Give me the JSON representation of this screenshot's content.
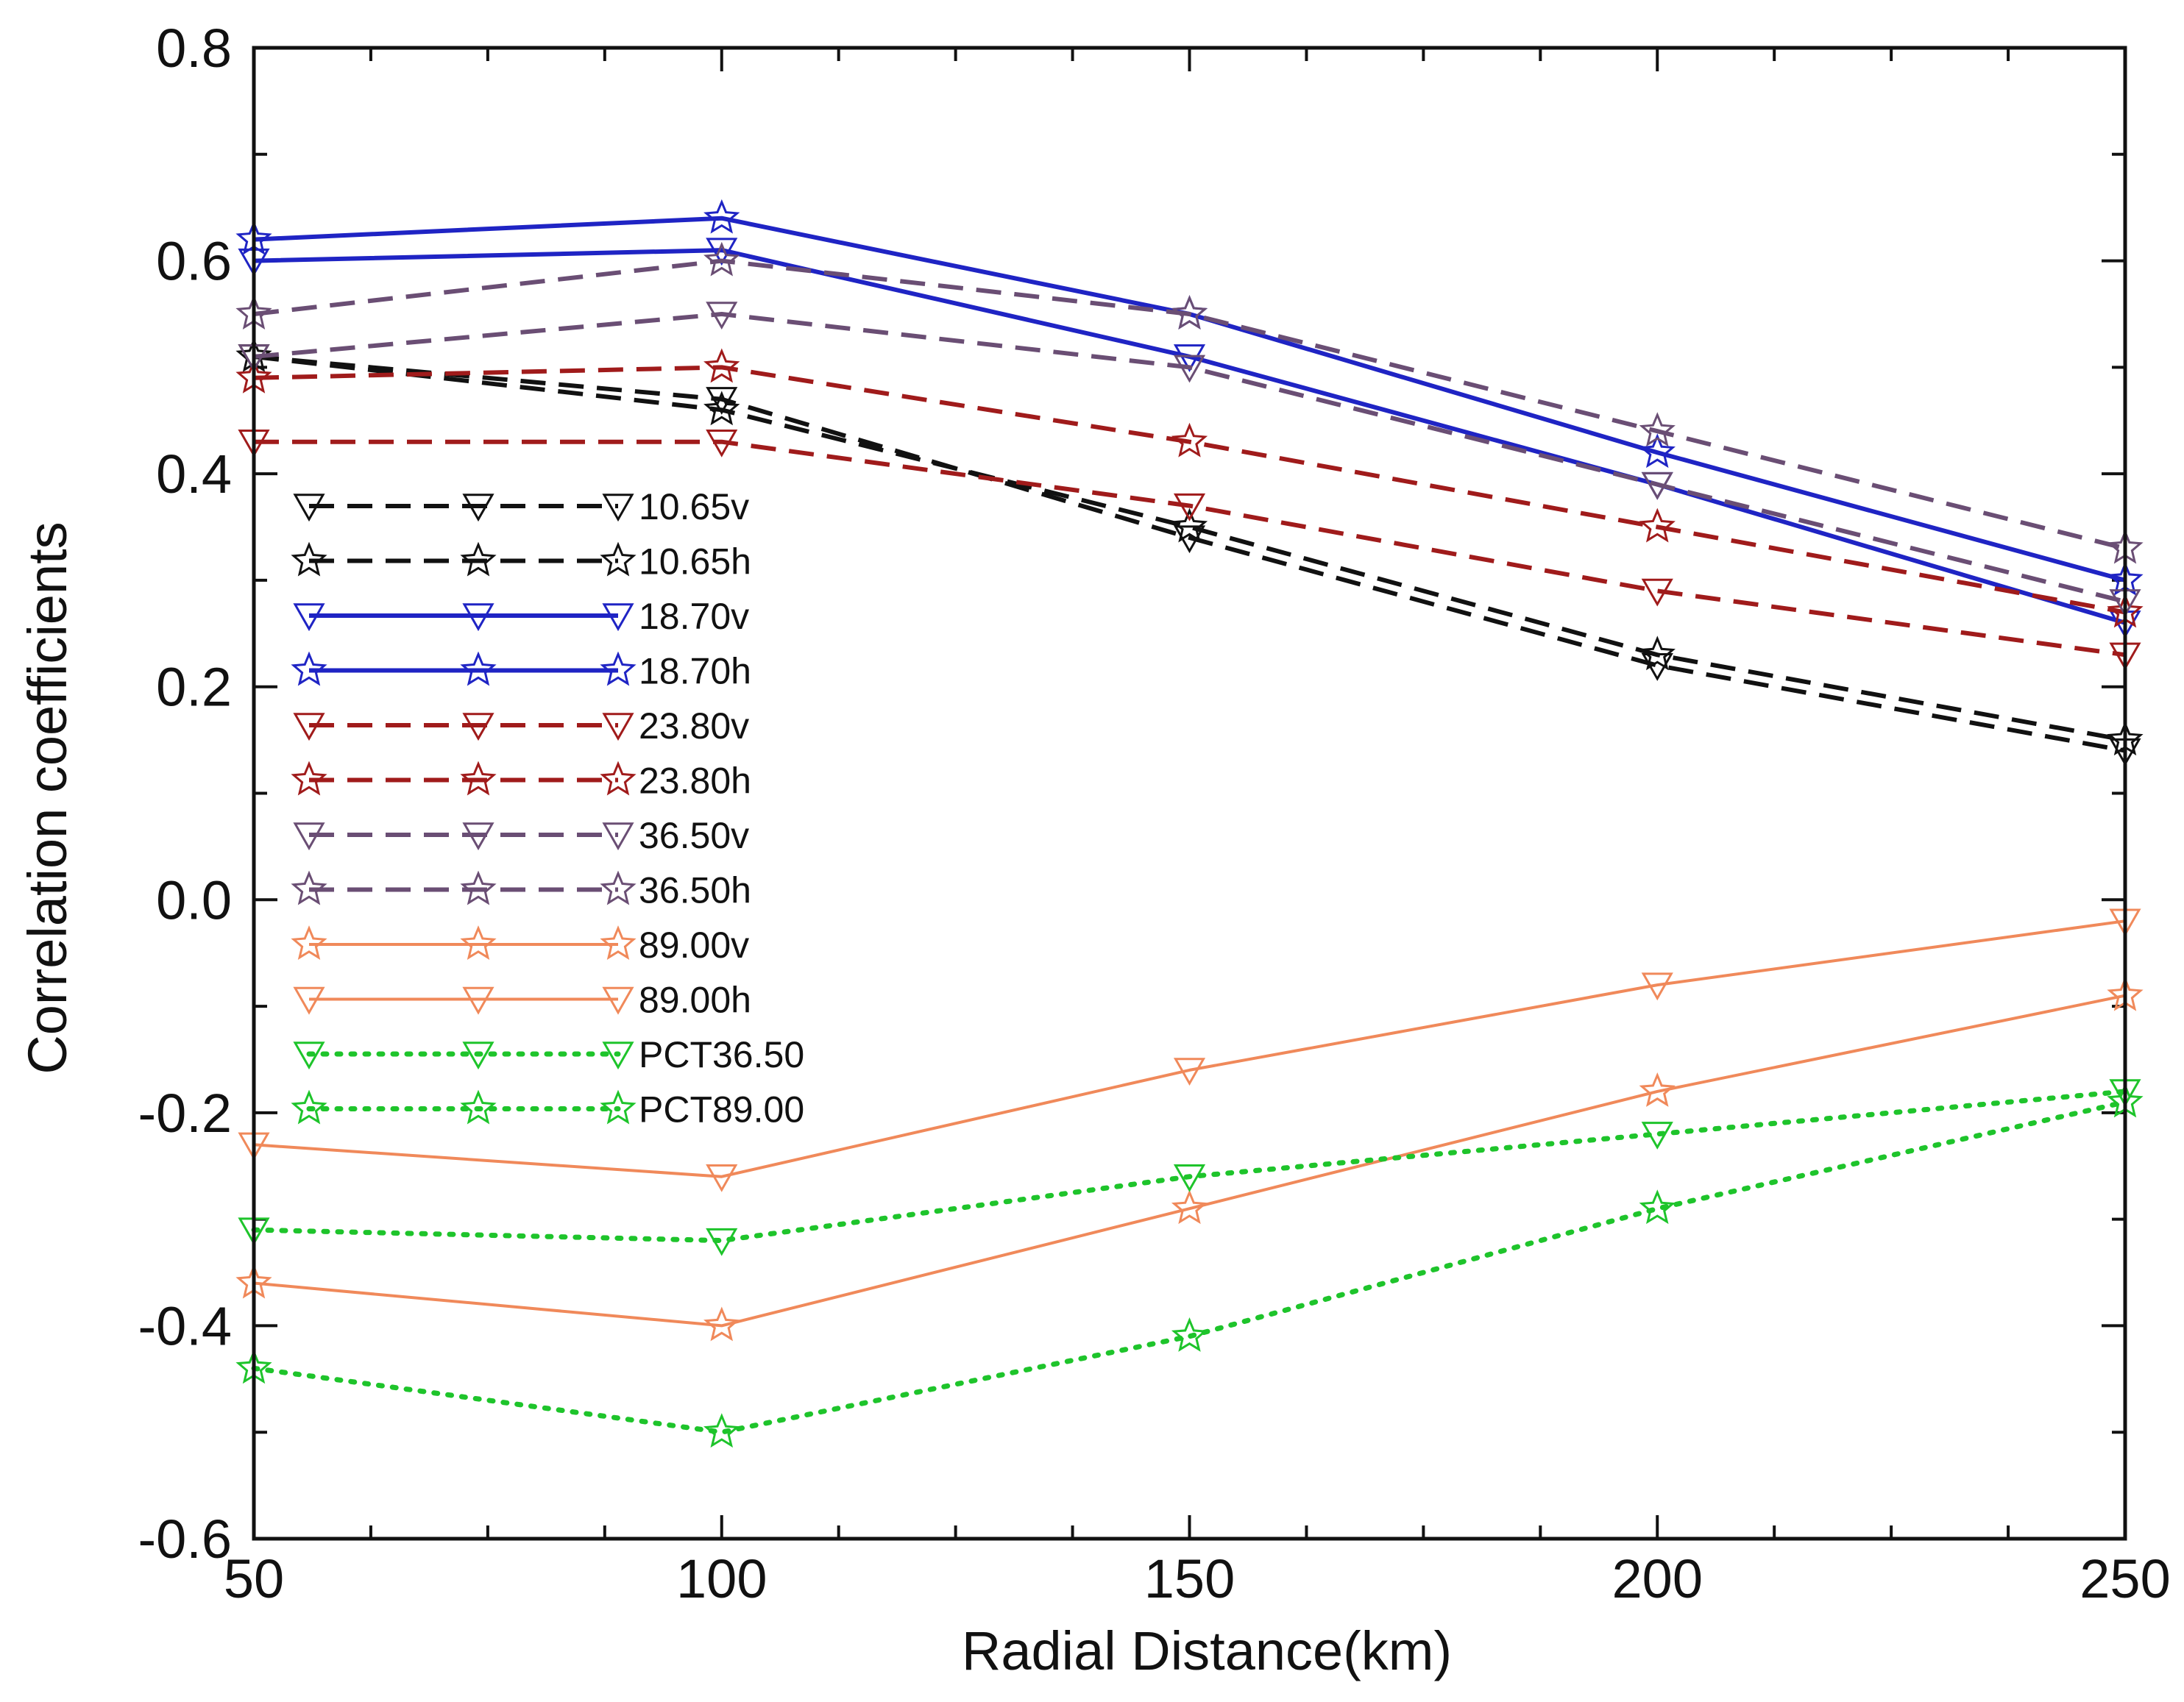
{
  "chart_data": {
    "type": "line",
    "title": "",
    "xlabel": "Radial Distance(km)",
    "ylabel": "Correlation coefficients",
    "xlim": [
      50,
      250
    ],
    "ylim": [
      -0.6,
      0.8
    ],
    "x_ticks": [
      "50",
      "100",
      "150",
      "200",
      "250"
    ],
    "x_tick_values": [
      50,
      100,
      150,
      200,
      250
    ],
    "y_ticks": [
      "-0.6",
      "-0.4",
      "-0.2",
      "0.0",
      "0.2",
      "0.4",
      "0.6",
      "0.8"
    ],
    "y_tick_values": [
      -0.6,
      -0.4,
      -0.2,
      0.0,
      0.2,
      0.4,
      0.6,
      0.8
    ],
    "x": [
      50,
      100,
      150,
      200,
      250
    ],
    "legend_position": "upper-left inside plot",
    "series": [
      {
        "name": "10.65v",
        "values": [
          0.51,
          0.47,
          0.34,
          0.22,
          0.14
        ],
        "color": "#111111",
        "dash": "dashed",
        "marker": "triangle-down"
      },
      {
        "name": "10.65h",
        "values": [
          0.51,
          0.46,
          0.35,
          0.23,
          0.15
        ],
        "color": "#111111",
        "dash": "dashed",
        "marker": "star"
      },
      {
        "name": "18.70v",
        "values": [
          0.6,
          0.61,
          0.51,
          0.39,
          0.26
        ],
        "color": "#1f24c4",
        "dash": "solid",
        "marker": "triangle-down"
      },
      {
        "name": "18.70h",
        "values": [
          0.62,
          0.64,
          0.55,
          0.42,
          0.3
        ],
        "color": "#1f24c4",
        "dash": "solid",
        "marker": "star"
      },
      {
        "name": "23.80v",
        "values": [
          0.43,
          0.43,
          0.37,
          0.29,
          0.23
        ],
        "color": "#a01b1b",
        "dash": "dashed",
        "marker": "triangle-down"
      },
      {
        "name": "23.80h",
        "values": [
          0.49,
          0.5,
          0.43,
          0.35,
          0.27
        ],
        "color": "#a01b1b",
        "dash": "dashed",
        "marker": "star"
      },
      {
        "name": "36.50v",
        "values": [
          0.51,
          0.55,
          0.5,
          0.39,
          0.28
        ],
        "color": "#6a4e74",
        "dash": "dashed",
        "marker": "triangle-down"
      },
      {
        "name": "36.50h",
        "values": [
          0.55,
          0.6,
          0.55,
          0.44,
          0.33
        ],
        "color": "#6a4e74",
        "dash": "dashed",
        "marker": "star"
      },
      {
        "name": "89.00v",
        "values": [
          -0.36,
          -0.4,
          -0.29,
          -0.18,
          -0.09
        ],
        "color": "#f0895a",
        "dash": "solid",
        "marker": "star"
      },
      {
        "name": "89.00h",
        "values": [
          -0.23,
          -0.26,
          -0.16,
          -0.08,
          -0.02
        ],
        "color": "#f0895a",
        "dash": "solid",
        "marker": "triangle-down"
      },
      {
        "name": "PCT36.50",
        "values": [
          -0.31,
          -0.32,
          -0.26,
          -0.22,
          -0.18
        ],
        "color": "#1ec42b",
        "dash": "dotted",
        "marker": "triangle-down"
      },
      {
        "name": "PCT89.00",
        "values": [
          -0.44,
          -0.5,
          -0.41,
          -0.29,
          -0.19
        ],
        "color": "#1ec42b",
        "dash": "dotted",
        "marker": "star"
      }
    ]
  }
}
